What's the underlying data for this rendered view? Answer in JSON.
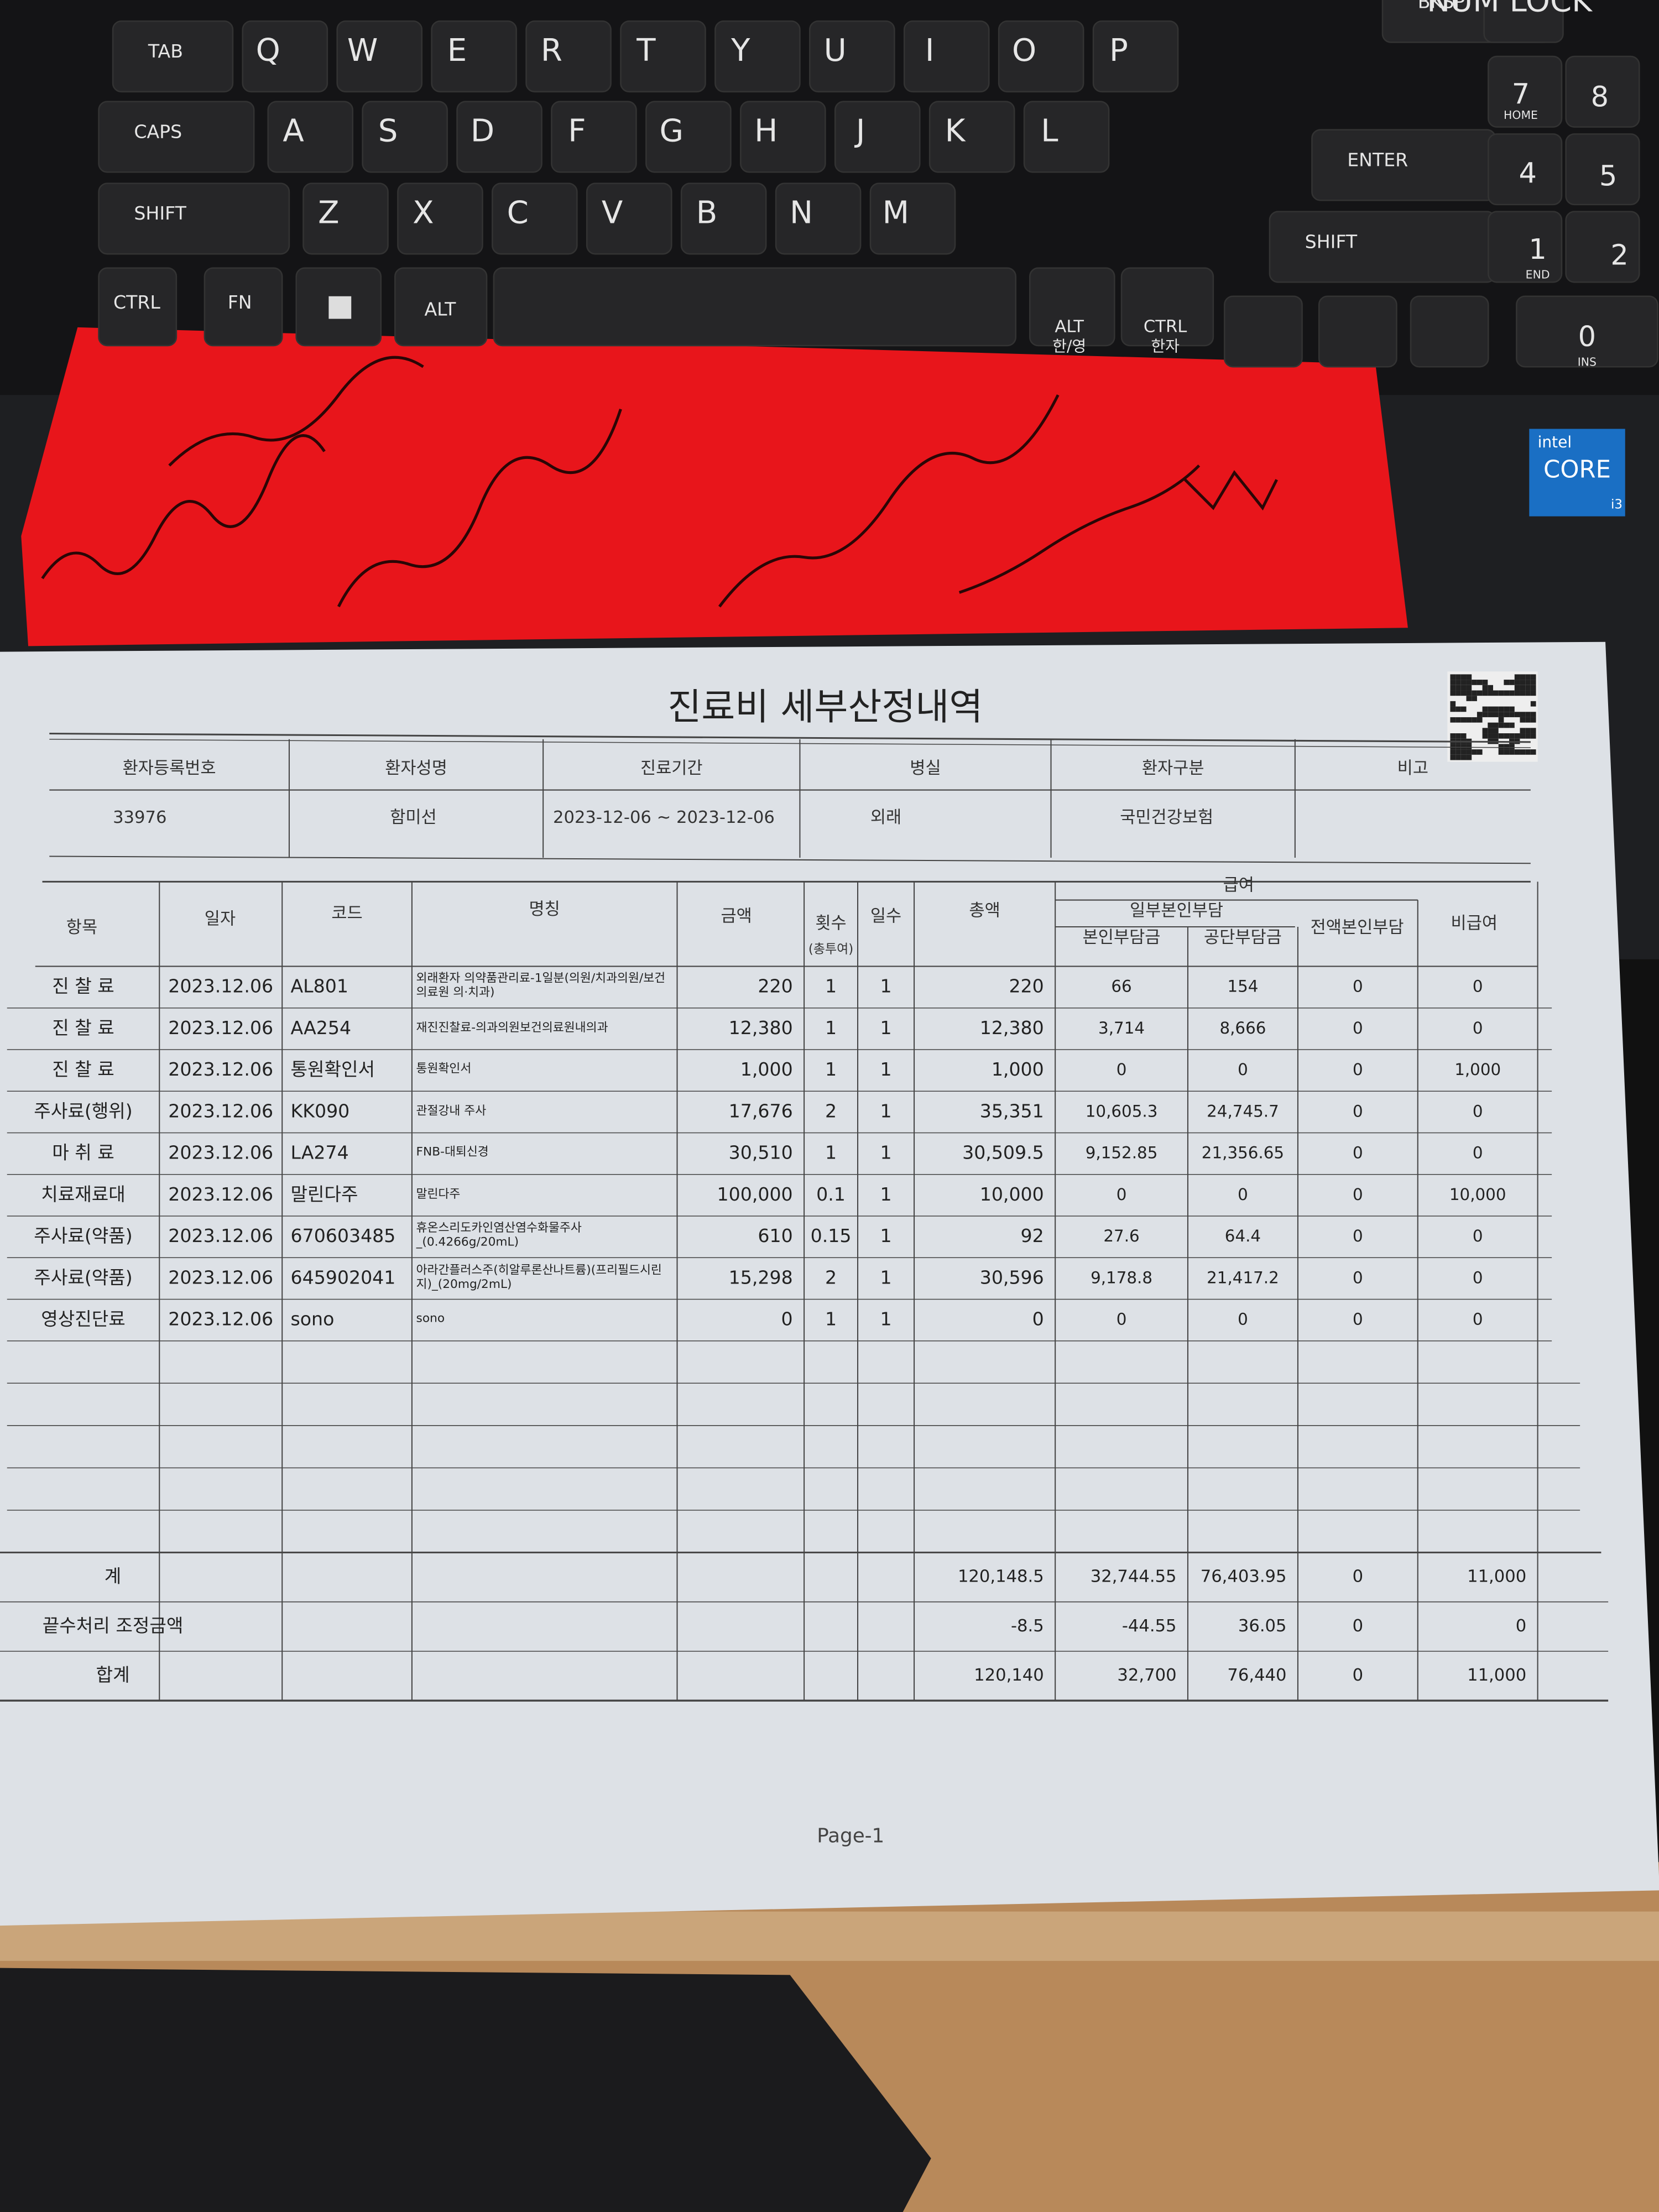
{
  "keyboard": {
    "top": [
      "BKSP",
      "NUM LOCK"
    ],
    "row1": [
      "TAB",
      "Q",
      "W",
      "E",
      "R",
      "T",
      "Y",
      "U",
      "I",
      "O",
      "P"
    ],
    "row2": [
      "CAPS",
      "A",
      "S",
      "D",
      "F",
      "G",
      "H",
      "J",
      "K",
      "L",
      "ENTER"
    ],
    "row3": [
      "SHIFT",
      "Z",
      "X",
      "C",
      "V",
      "B",
      "N",
      "M",
      "SHIFT"
    ],
    "row4": [
      "CTRL",
      "FN",
      "ALT",
      "ALT",
      "한/영",
      "CTRL",
      "한자"
    ],
    "numpad": [
      "7",
      "HOME",
      "8",
      "4",
      "5",
      "1",
      "END",
      "2",
      "0",
      "INS"
    ]
  },
  "cpu_badge": {
    "brand": "intel",
    "model": "CORE",
    "tier": "i3"
  },
  "document": {
    "title": "진료비 세부산정내역",
    "info_table": {
      "headers": [
        "환자등록번호",
        "환자성명",
        "진료기간",
        "병실",
        "환자구분",
        "비고"
      ],
      "values": [
        "33976",
        "함미선",
        "2023-12-06 ~ 2023-12-06",
        "외래",
        "국민건강보험"
      ]
    },
    "items_table": {
      "headers": {
        "item": "항목",
        "date": "일자",
        "code": "코드",
        "name": "명칭",
        "amount": "금액",
        "count": "횟수",
        "count_note": "(총투여)",
        "days": "일수",
        "total": "총액",
        "covered": "급여",
        "partial": "일부본인부담",
        "patient": "본인부담금",
        "insurer": "공단부담금",
        "full": "전액본인부담",
        "noncovered": "비급여"
      },
      "rows": [
        [
          "진 찰 료",
          "2023.12.06",
          "AL801",
          "외래환자 의약품관리료-1일분(의원/치과의원/보건의료원 의·치과)",
          "220",
          "1",
          "1",
          "220",
          "66",
          "154",
          "0",
          "0"
        ],
        [
          "진 찰 료",
          "2023.12.06",
          "AA254",
          "재진진찰료-의과의원보건의료원내의과",
          "12,380",
          "1",
          "1",
          "12,380",
          "3,714",
          "8,666",
          "0",
          "0"
        ],
        [
          "진 찰 료",
          "2023.12.06",
          "통원확인서",
          "통원확인서",
          "1,000",
          "1",
          "1",
          "1,000",
          "0",
          "0",
          "0",
          "1,000"
        ],
        [
          "주사료(행위)",
          "2023.12.06",
          "KK090",
          "관절강내 주사",
          "17,676",
          "2",
          "1",
          "35,351",
          "10,605.3",
          "24,745.7",
          "0",
          "0"
        ],
        [
          "마 취 료",
          "2023.12.06",
          "LA274",
          "FNB-대퇴신경",
          "30,510",
          "1",
          "1",
          "30,509.5",
          "9,152.85",
          "21,356.65",
          "0",
          "0"
        ],
        [
          "치료재료대",
          "2023.12.06",
          "말린다주",
          "말린다주",
          "100,000",
          "0.1",
          "1",
          "10,000",
          "0",
          "0",
          "0",
          "10,000"
        ],
        [
          "주사료(약품)",
          "2023.12.06",
          "670603485",
          "휴온스리도카인염산염수화물주사_(0.4266g/20mL)",
          "610",
          "0.15",
          "1",
          "92",
          "27.6",
          "64.4",
          "0",
          "0"
        ],
        [
          "주사료(약품)",
          "2023.12.06",
          "645902041",
          "아라간플러스주(히알루론산나트륨)(프리필드시린지)_(20mg/2mL)",
          "15,298",
          "2",
          "1",
          "30,596",
          "9,178.8",
          "21,417.2",
          "0",
          "0"
        ],
        [
          "영상진단료",
          "2023.12.06",
          "sono",
          "sono",
          "0",
          "1",
          "1",
          "0",
          "0",
          "0",
          "0",
          "0"
        ]
      ],
      "summary": [
        {
          "label": "계",
          "values": [
            "120,148.5",
            "32,744.55",
            "76,403.95",
            "0",
            "11,000"
          ]
        },
        {
          "label": "끝수처리 조정금액",
          "values": [
            "-8.5",
            "-44.55",
            "36.05",
            "0",
            "0"
          ]
        },
        {
          "label": "합계",
          "values": [
            "120,140",
            "32,700",
            "76,440",
            "0",
            "11,000"
          ]
        }
      ]
    },
    "page": "Page-1"
  }
}
